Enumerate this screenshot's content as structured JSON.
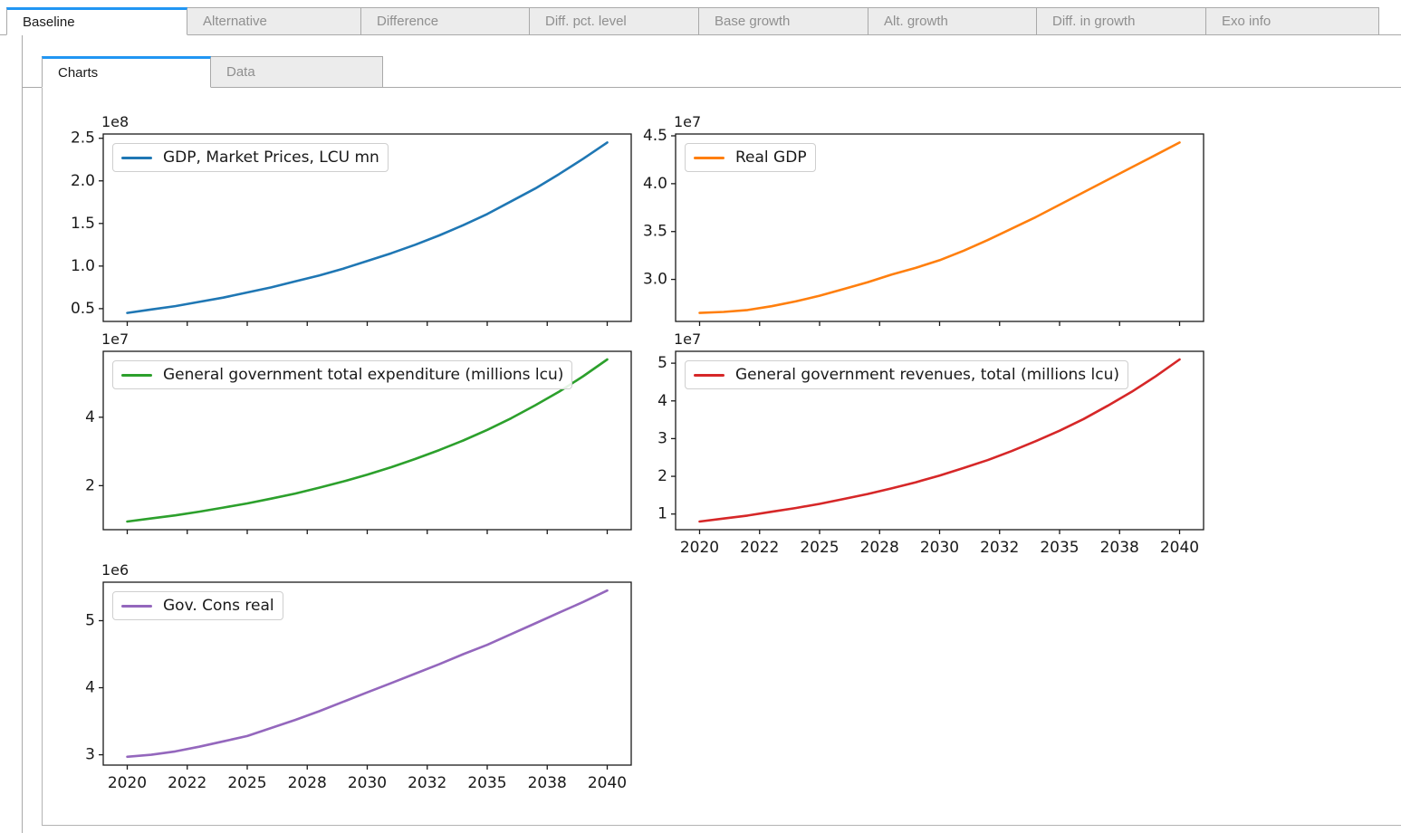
{
  "colors": {
    "accent_blue": "#2196f3",
    "tab_inactive_bg": "#ececec",
    "tab_border": "#a9a9a9",
    "tab_inactive_text": "#8f8f8f",
    "tab_active_text": "#1a1a1a",
    "figure_border": "#b3b3b3",
    "axes_color": "#1a1a1a"
  },
  "tabs": {
    "items": [
      {
        "label": "Baseline",
        "active": true
      },
      {
        "label": "Alternative",
        "active": false
      },
      {
        "label": "Difference",
        "active": false
      },
      {
        "label": "Diff. pct. level",
        "active": false
      },
      {
        "label": "Base growth",
        "active": false
      },
      {
        "label": "Alt. growth",
        "active": false
      },
      {
        "label": "Diff. in growth",
        "active": false
      },
      {
        "label": "Exo info",
        "active": false
      }
    ]
  },
  "subtabs": {
    "items": [
      {
        "label": "Charts",
        "active": true
      },
      {
        "label": "Data",
        "active": false
      }
    ]
  },
  "chart_data": [
    {
      "type": "line",
      "legend": "GDP, Market Prices, LCU mn",
      "color": "#1f77b4",
      "offset_label": "1e8",
      "unit_multiplier": 100000000,
      "x": [
        2020,
        2021,
        2022,
        2023,
        2024,
        2025,
        2026,
        2027,
        2028,
        2029,
        2030,
        2031,
        2032,
        2033,
        2034,
        2035,
        2036,
        2037,
        2038,
        2039,
        2040
      ],
      "values": [
        0.45,
        0.49,
        0.53,
        0.58,
        0.63,
        0.69,
        0.75,
        0.82,
        0.89,
        0.97,
        1.06,
        1.15,
        1.25,
        1.36,
        1.48,
        1.61,
        1.76,
        1.91,
        2.08,
        2.26,
        2.45
      ],
      "xlim": [
        2019,
        2041
      ],
      "ylim": [
        0.35,
        2.55
      ],
      "x_tick_values": [
        2020,
        2022.5,
        2025,
        2027.5,
        2030,
        2032.5,
        2035,
        2037.5,
        2040
      ],
      "x_tick_labels": [
        "2020",
        "2022",
        "2025",
        "2028",
        "2030",
        "2032",
        "2035",
        "2038",
        "2040"
      ],
      "x_labels_visible": false,
      "y_tick_values": [
        0.5,
        1.0,
        1.5,
        2.0,
        2.5
      ],
      "y_tick_labels": [
        "0.5",
        "1.0",
        "1.5",
        "2.0",
        "2.5"
      ],
      "grid": false,
      "legend_position": "upper-left"
    },
    {
      "type": "line",
      "legend": "Real GDP",
      "color": "#ff7f0e",
      "offset_label": "1e7",
      "unit_multiplier": 10000000,
      "x": [
        2020,
        2021,
        2022,
        2023,
        2024,
        2025,
        2026,
        2027,
        2028,
        2029,
        2030,
        2031,
        2032,
        2033,
        2034,
        2035,
        2036,
        2037,
        2038,
        2039,
        2040
      ],
      "values": [
        2.65,
        2.66,
        2.68,
        2.72,
        2.77,
        2.83,
        2.9,
        2.97,
        3.05,
        3.12,
        3.2,
        3.3,
        3.41,
        3.53,
        3.65,
        3.78,
        3.91,
        4.04,
        4.17,
        4.3,
        4.43
      ],
      "xlim": [
        2019,
        2041
      ],
      "ylim": [
        2.561,
        4.519
      ],
      "x_tick_values": [
        2020,
        2022.5,
        2025,
        2027.5,
        2030,
        2032.5,
        2035,
        2037.5,
        2040
      ],
      "x_tick_labels": [
        "2020",
        "2022",
        "2025",
        "2028",
        "2030",
        "2032",
        "2035",
        "2038",
        "2040"
      ],
      "x_labels_visible": false,
      "y_tick_values": [
        3.0,
        3.5,
        4.0,
        4.5
      ],
      "y_tick_labels": [
        "3.0",
        "3.5",
        "4.0",
        "4.5"
      ],
      "grid": false,
      "legend_position": "upper-left"
    },
    {
      "type": "line",
      "legend": "General government total expenditure (millions lcu)",
      "color": "#2ca02c",
      "offset_label": "1e7",
      "unit_multiplier": 10000000,
      "x": [
        2020,
        2021,
        2022,
        2023,
        2024,
        2025,
        2026,
        2027,
        2028,
        2029,
        2030,
        2031,
        2032,
        2033,
        2034,
        2035,
        2036,
        2037,
        2038,
        2039,
        2040
      ],
      "values": [
        0.95,
        1.04,
        1.13,
        1.24,
        1.36,
        1.48,
        1.62,
        1.77,
        1.94,
        2.12,
        2.32,
        2.54,
        2.78,
        3.04,
        3.32,
        3.63,
        3.97,
        4.35,
        4.75,
        5.2,
        5.69
      ],
      "xlim": [
        2019,
        2041
      ],
      "ylim": [
        0.713,
        5.927
      ],
      "x_tick_values": [
        2020,
        2022.5,
        2025,
        2027.5,
        2030,
        2032.5,
        2035,
        2037.5,
        2040
      ],
      "x_tick_labels": [
        "2020",
        "2022",
        "2025",
        "2028",
        "2030",
        "2032",
        "2035",
        "2038",
        "2040"
      ],
      "x_labels_visible": false,
      "y_tick_values": [
        2,
        4
      ],
      "y_tick_labels": [
        "2",
        "4"
      ],
      "grid": false,
      "legend_position": "upper-left"
    },
    {
      "type": "line",
      "legend": "General government revenues, total (millions lcu)",
      "color": "#d62728",
      "offset_label": "1e7",
      "unit_multiplier": 10000000,
      "x": [
        2020,
        2021,
        2022,
        2023,
        2024,
        2025,
        2026,
        2027,
        2028,
        2029,
        2030,
        2031,
        2032,
        2033,
        2034,
        2035,
        2036,
        2037,
        2038,
        2039,
        2040
      ],
      "values": [
        0.8,
        0.88,
        0.96,
        1.06,
        1.16,
        1.27,
        1.4,
        1.53,
        1.68,
        1.84,
        2.02,
        2.22,
        2.43,
        2.67,
        2.93,
        3.21,
        3.52,
        3.87,
        4.24,
        4.65,
        5.1
      ],
      "xlim": [
        2019,
        2041
      ],
      "ylim": [
        0.585,
        5.315
      ],
      "x_tick_values": [
        2020,
        2022.5,
        2025,
        2027.5,
        2030,
        2032.5,
        2035,
        2037.5,
        2040
      ],
      "x_tick_labels": [
        "2020",
        "2022",
        "2025",
        "2028",
        "2030",
        "2032",
        "2035",
        "2038",
        "2040"
      ],
      "x_labels_visible": true,
      "y_tick_values": [
        1,
        2,
        3,
        4,
        5
      ],
      "y_tick_labels": [
        "1",
        "2",
        "3",
        "4",
        "5"
      ],
      "grid": false,
      "legend_position": "upper-left"
    },
    {
      "type": "line",
      "legend": "Gov. Cons real",
      "color": "#9467bd",
      "offset_label": "1e6",
      "unit_multiplier": 1000000,
      "x": [
        2020,
        2021,
        2022,
        2023,
        2024,
        2025,
        2026,
        2027,
        2028,
        2029,
        2030,
        2031,
        2032,
        2033,
        2034,
        2035,
        2036,
        2037,
        2038,
        2039,
        2040
      ],
      "values": [
        2.97,
        3.0,
        3.05,
        3.12,
        3.2,
        3.28,
        3.4,
        3.52,
        3.65,
        3.79,
        3.93,
        4.07,
        4.21,
        4.35,
        4.5,
        4.64,
        4.8,
        4.96,
        5.12,
        5.28,
        5.45
      ],
      "xlim": [
        2019,
        2041
      ],
      "ylim": [
        2.846,
        5.574
      ],
      "x_tick_values": [
        2020,
        2022.5,
        2025,
        2027.5,
        2030,
        2032.5,
        2035,
        2037.5,
        2040
      ],
      "x_tick_labels": [
        "2020",
        "2022",
        "2025",
        "2028",
        "2030",
        "2032",
        "2035",
        "2038",
        "2040"
      ],
      "x_labels_visible": true,
      "y_tick_values": [
        3,
        4,
        5
      ],
      "y_tick_labels": [
        "3",
        "4",
        "5"
      ],
      "grid": false,
      "legend_position": "upper-left"
    }
  ]
}
